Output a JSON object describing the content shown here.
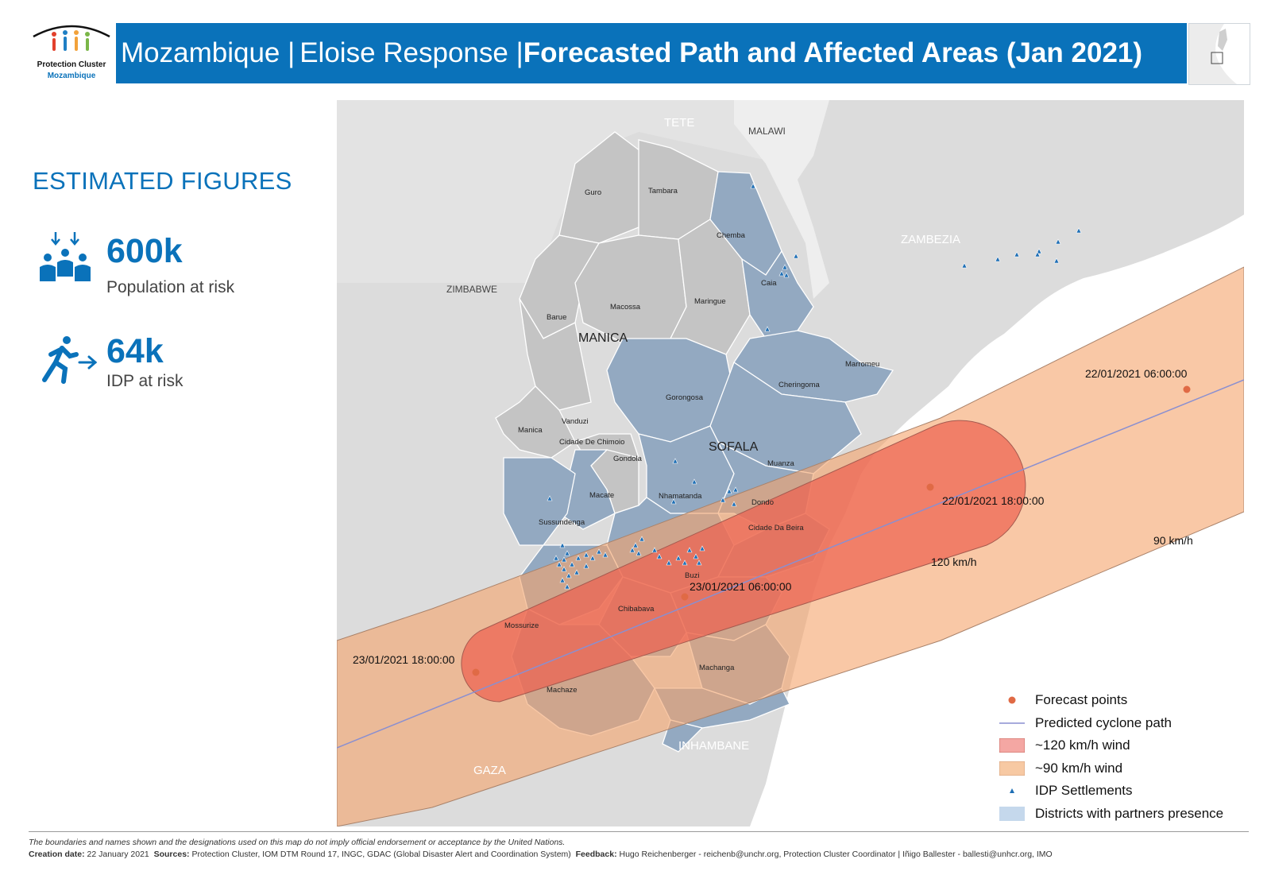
{
  "header": {
    "title_part1": "Mozambique |",
    "title_part2": "Eloise Response |",
    "title_part3": "Forecasted Path and Affected Areas (Jan 2021)",
    "brand_color": "#0a72ba"
  },
  "logo": {
    "line1": "Protection Cluster",
    "line2": "Mozambique"
  },
  "figures": {
    "title": "ESTIMATED FIGURES",
    "items": [
      {
        "icon": "population-icon",
        "value": "600k",
        "label": "Population at risk"
      },
      {
        "icon": "idp-running-icon",
        "value": "64k",
        "label": "IDP at risk"
      }
    ]
  },
  "map": {
    "regions": {
      "tete": "TETE",
      "malawi": "MALAWI",
      "zimbabwe": "ZIMBABWE",
      "zambezia": "ZAMBEZIA",
      "manica": "MANICA",
      "sofala": "SOFALA",
      "inhambane": "INHAMBANE",
      "gaza": "GAZA"
    },
    "districts": {
      "guro": "Guro",
      "tambara": "Tambara",
      "chemba": "Chemba",
      "caia": "Caia",
      "macossa": "Macossa",
      "maringue": "Maringue",
      "barue": "Barue",
      "marromeu": "Marromeu",
      "cheringoma": "Cheringoma",
      "gorongosa": "Gorongosa",
      "vanduzi": "Vanduzi",
      "manica": "Manica",
      "cidade_chimoio": "Cidade De Chimoio",
      "gondola": "Gondola",
      "muanza": "Muanza",
      "macate": "Macate",
      "nhamatanda": "Nhamatanda",
      "dondo": "Dondo",
      "sussundenga": "Sussundenga",
      "cidade_beira": "Cidade Da Beira",
      "buzi": "Buzi",
      "chibabava": "Chibabava",
      "mossurize": "Mossurize",
      "machanga": "Machanga",
      "machaze": "Machaze"
    },
    "forecast_points": [
      {
        "label": "22/01/2021 06:00:00"
      },
      {
        "label": "22/01/2021 18:00:00"
      },
      {
        "label": "23/01/2021 06:00:00"
      },
      {
        "label": "23/01/2021 18:00:00"
      }
    ],
    "wind_labels": {
      "band120": "120 km/h",
      "band90": "90 km/h"
    },
    "colors": {
      "band90": "#f5a46a",
      "band120": "#ee5f4f",
      "partner_district": "#93a9c1",
      "other_district": "#c4c4c4",
      "land": "#dcdcdc",
      "water": "#ffffff",
      "forecast_point": "#e06a45",
      "path": "#8a8fd0",
      "idp": "#1f6fb5"
    }
  },
  "legend": {
    "items": [
      {
        "key": "forecast",
        "label": "Forecast points"
      },
      {
        "key": "path",
        "label": "Predicted cyclone path"
      },
      {
        "key": "w120",
        "label": "~120 km/h wind"
      },
      {
        "key": "w90",
        "label": "~90 km/h wind"
      },
      {
        "key": "idp",
        "label": "IDP Settlements"
      },
      {
        "key": "partners",
        "label": "Districts with partners presence"
      }
    ]
  },
  "footer": {
    "disclaimer": "The boundaries and names shown and the designations used on this map do not imply official endorsement or acceptance by the United Nations.",
    "creation_label": "Creation date:",
    "creation_value": "22 January 2021",
    "sources_label": "Sources:",
    "sources_value": "Protection Cluster, IOM DTM Round 17, INGC, GDAC (Global Disaster Alert and Coordination System)",
    "feedback_label": "Feedback:",
    "feedback_value": "Hugo Reichenberger - reichenb@unchr.org, Protection Cluster Coordinator | Iñigo Ballester - ballesti@unhcr.org, IMO"
  }
}
